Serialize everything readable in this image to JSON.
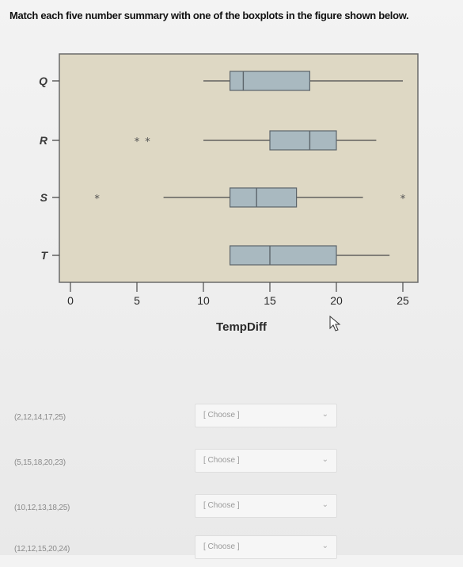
{
  "question": "Match each five number summary with one of the boxplots in the figure shown below.",
  "plot": {
    "xlabel": "TempDiff",
    "x_ticks": [
      "0",
      "5",
      "10",
      "15",
      "20",
      "25"
    ],
    "y_labels": [
      "Q",
      "R",
      "S",
      "T"
    ]
  },
  "chart_data": {
    "type": "boxplot",
    "xlabel": "TempDiff",
    "xlim": [
      -1,
      27
    ],
    "categories": [
      "Q",
      "R",
      "S",
      "T"
    ],
    "boxes": [
      {
        "label": "Q",
        "whisker_low": 10,
        "q1": 12,
        "median": 13,
        "q3": 18,
        "whisker_high": 25,
        "outliers": []
      },
      {
        "label": "R",
        "whisker_low": 10,
        "q1": 15,
        "median": 18,
        "q3": 20,
        "whisker_high": 23,
        "outliers": [
          5,
          5.8
        ]
      },
      {
        "label": "S",
        "whisker_low": 7,
        "q1": 12,
        "median": 14,
        "q3": 17,
        "whisker_high": 22,
        "outliers": [
          2,
          25
        ]
      },
      {
        "label": "T",
        "whisker_low": 12,
        "q1": 12,
        "median": 15,
        "q3": 20,
        "whisker_high": 24,
        "outliers": []
      }
    ]
  },
  "matches": [
    {
      "summary": "(2,12,14,17,25)",
      "select": "[ Choose ]"
    },
    {
      "summary": "(5,15,18,20,23)",
      "select": "[ Choose ]"
    },
    {
      "summary": "(10,12,13,18,25)",
      "select": "[ Choose ]"
    },
    {
      "summary": "(12,12,15,20,24)",
      "select": "[ Choose ]"
    }
  ],
  "colors": {
    "plot_bg": "#ded8c4",
    "box_fill": "#a9b9c0",
    "box_stroke": "#5c656b",
    "line": "#4a4a4a",
    "outlier": "#505050"
  },
  "icons": {
    "dropdown": "chevron-down-icon",
    "cursor": "mouse-cursor-icon"
  }
}
